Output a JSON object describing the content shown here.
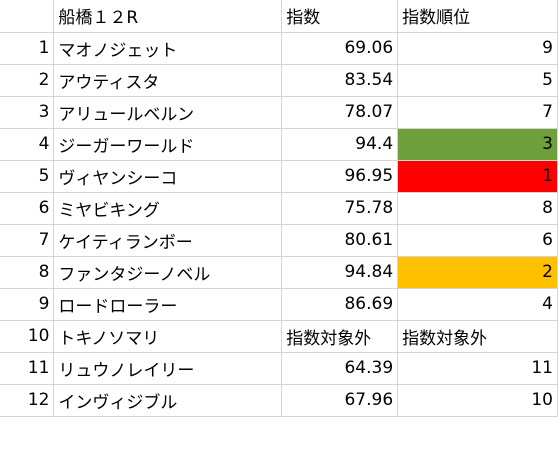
{
  "header": {
    "row_num": "",
    "name": "船橋１２R",
    "index": "指数",
    "rank": "指数順位"
  },
  "rows": [
    {
      "num": "1",
      "name": "マオノジェット",
      "index": "69.06",
      "rank": "9"
    },
    {
      "num": "2",
      "name": "アウティスタ",
      "index": "83.54",
      "rank": "5"
    },
    {
      "num": "3",
      "name": "アリュールベルン",
      "index": "78.07",
      "rank": "7"
    },
    {
      "num": "4",
      "name": "ジーガーワールド",
      "index": "94.4",
      "rank": "3",
      "rank_fill": "#70a03c"
    },
    {
      "num": "5",
      "name": "ヴィヤンシーコ",
      "index": "96.95",
      "rank": "1",
      "rank_fill": "#ff0000"
    },
    {
      "num": "6",
      "name": "ミヤビキング",
      "index": "75.78",
      "rank": "8"
    },
    {
      "num": "7",
      "name": "ケイティランボー",
      "index": "80.61",
      "rank": "6"
    },
    {
      "num": "8",
      "name": "ファンタジーノベル",
      "index": "94.84",
      "rank": "2",
      "rank_fill": "#ffc000"
    },
    {
      "num": "9",
      "name": "ロードローラー",
      "index": "86.69",
      "rank": "4"
    },
    {
      "num": "10",
      "name": "トキノソマリ",
      "index": "指数対象外",
      "rank": "指数対象外",
      "text_cells": true
    },
    {
      "num": "11",
      "name": "リュウノレイリー",
      "index": "64.39",
      "rank": "11"
    },
    {
      "num": "12",
      "name": "インヴィジブル",
      "index": "67.96",
      "rank": "10"
    }
  ]
}
